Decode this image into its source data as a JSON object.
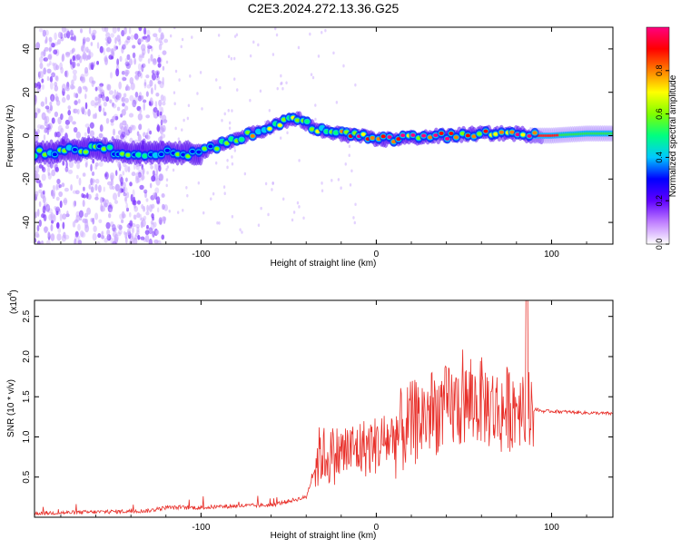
{
  "chart_data": [
    {
      "type": "heatmap",
      "title": "C2E3.2024.272.13.36.G25",
      "xlabel": "Height of straight line (km)",
      "ylabel": "Frequency (Hz)",
      "xlim": [
        -195,
        135
      ],
      "ylim": [
        -50,
        50
      ],
      "xticks": [
        -100,
        0,
        100
      ],
      "xtick_labels": [
        "-100",
        "0",
        "100"
      ],
      "yticks": [
        -40,
        -20,
        0,
        20,
        40
      ],
      "ytick_labels": [
        "-40",
        "-20",
        "0",
        "20",
        "40"
      ],
      "colorbar": {
        "label": "Normalized spectral amplitude",
        "range": [
          0,
          1
        ],
        "ticks": [
          0.0,
          0.2,
          0.4,
          0.6,
          0.8
        ],
        "tick_labels": [
          "0.0",
          "0.2",
          "0.4",
          "0.6",
          "0.8"
        ],
        "colors": [
          "#ffffff",
          "#c080ff",
          "#6000ff",
          "#0000ff",
          "#00c8ff",
          "#00ff80",
          "#80ff00",
          "#ffff00",
          "#ff8000",
          "#ff0000",
          "#ff0080"
        ]
      },
      "ridge": {
        "x": [
          -195,
          -180,
          -160,
          -140,
          -120,
          -100,
          -85,
          -70,
          -60,
          -50,
          -45,
          -35,
          -25,
          -10,
          0,
          20,
          40,
          60,
          80,
          90,
          100,
          120,
          135
        ],
        "frequency": [
          -8,
          -7,
          -6,
          -8,
          -8,
          -8,
          -3,
          1,
          4,
          7,
          8,
          3,
          1,
          0,
          -2,
          -1,
          0,
          1,
          1,
          0,
          0,
          1,
          1
        ]
      },
      "grid": false
    },
    {
      "type": "line",
      "title": "",
      "xlabel": "Height of straight line (km)",
      "ylabel": "SNR (10 * v/v)",
      "y_multiplier": "(x10",
      "y_multiplier_exp": "4",
      "y_multiplier_close": ")",
      "xlim": [
        -195,
        135
      ],
      "ylim": [
        0,
        2.7
      ],
      "xticks": [
        -100,
        0,
        100
      ],
      "xtick_labels": [
        "-100",
        "0",
        "100"
      ],
      "yticks": [
        0.5,
        1.0,
        1.5,
        2.0,
        2.5
      ],
      "ytick_labels": [
        "0.5",
        "1.0",
        "1.5",
        "2.0",
        "2.5"
      ],
      "series": [
        {
          "color": "#e8302a",
          "x": [
            -195,
            -170,
            -150,
            -130,
            -120,
            -100,
            -80,
            -60,
            -50,
            -40,
            -35,
            -32,
            -28,
            -20,
            -10,
            0,
            10,
            20,
            30,
            40,
            50,
            60,
            70,
            80,
            86,
            90,
            95,
            100,
            110,
            120,
            135
          ],
          "values": [
            0.05,
            0.06,
            0.07,
            0.08,
            0.12,
            0.12,
            0.14,
            0.15,
            0.2,
            0.25,
            0.6,
            0.8,
            0.75,
            0.8,
            0.85,
            0.9,
            1.0,
            1.15,
            1.3,
            1.35,
            1.4,
            1.45,
            1.3,
            1.4,
            1.5,
            1.35,
            1.32,
            1.32,
            1.31,
            1.3,
            1.29
          ]
        }
      ],
      "grid": false
    }
  ]
}
